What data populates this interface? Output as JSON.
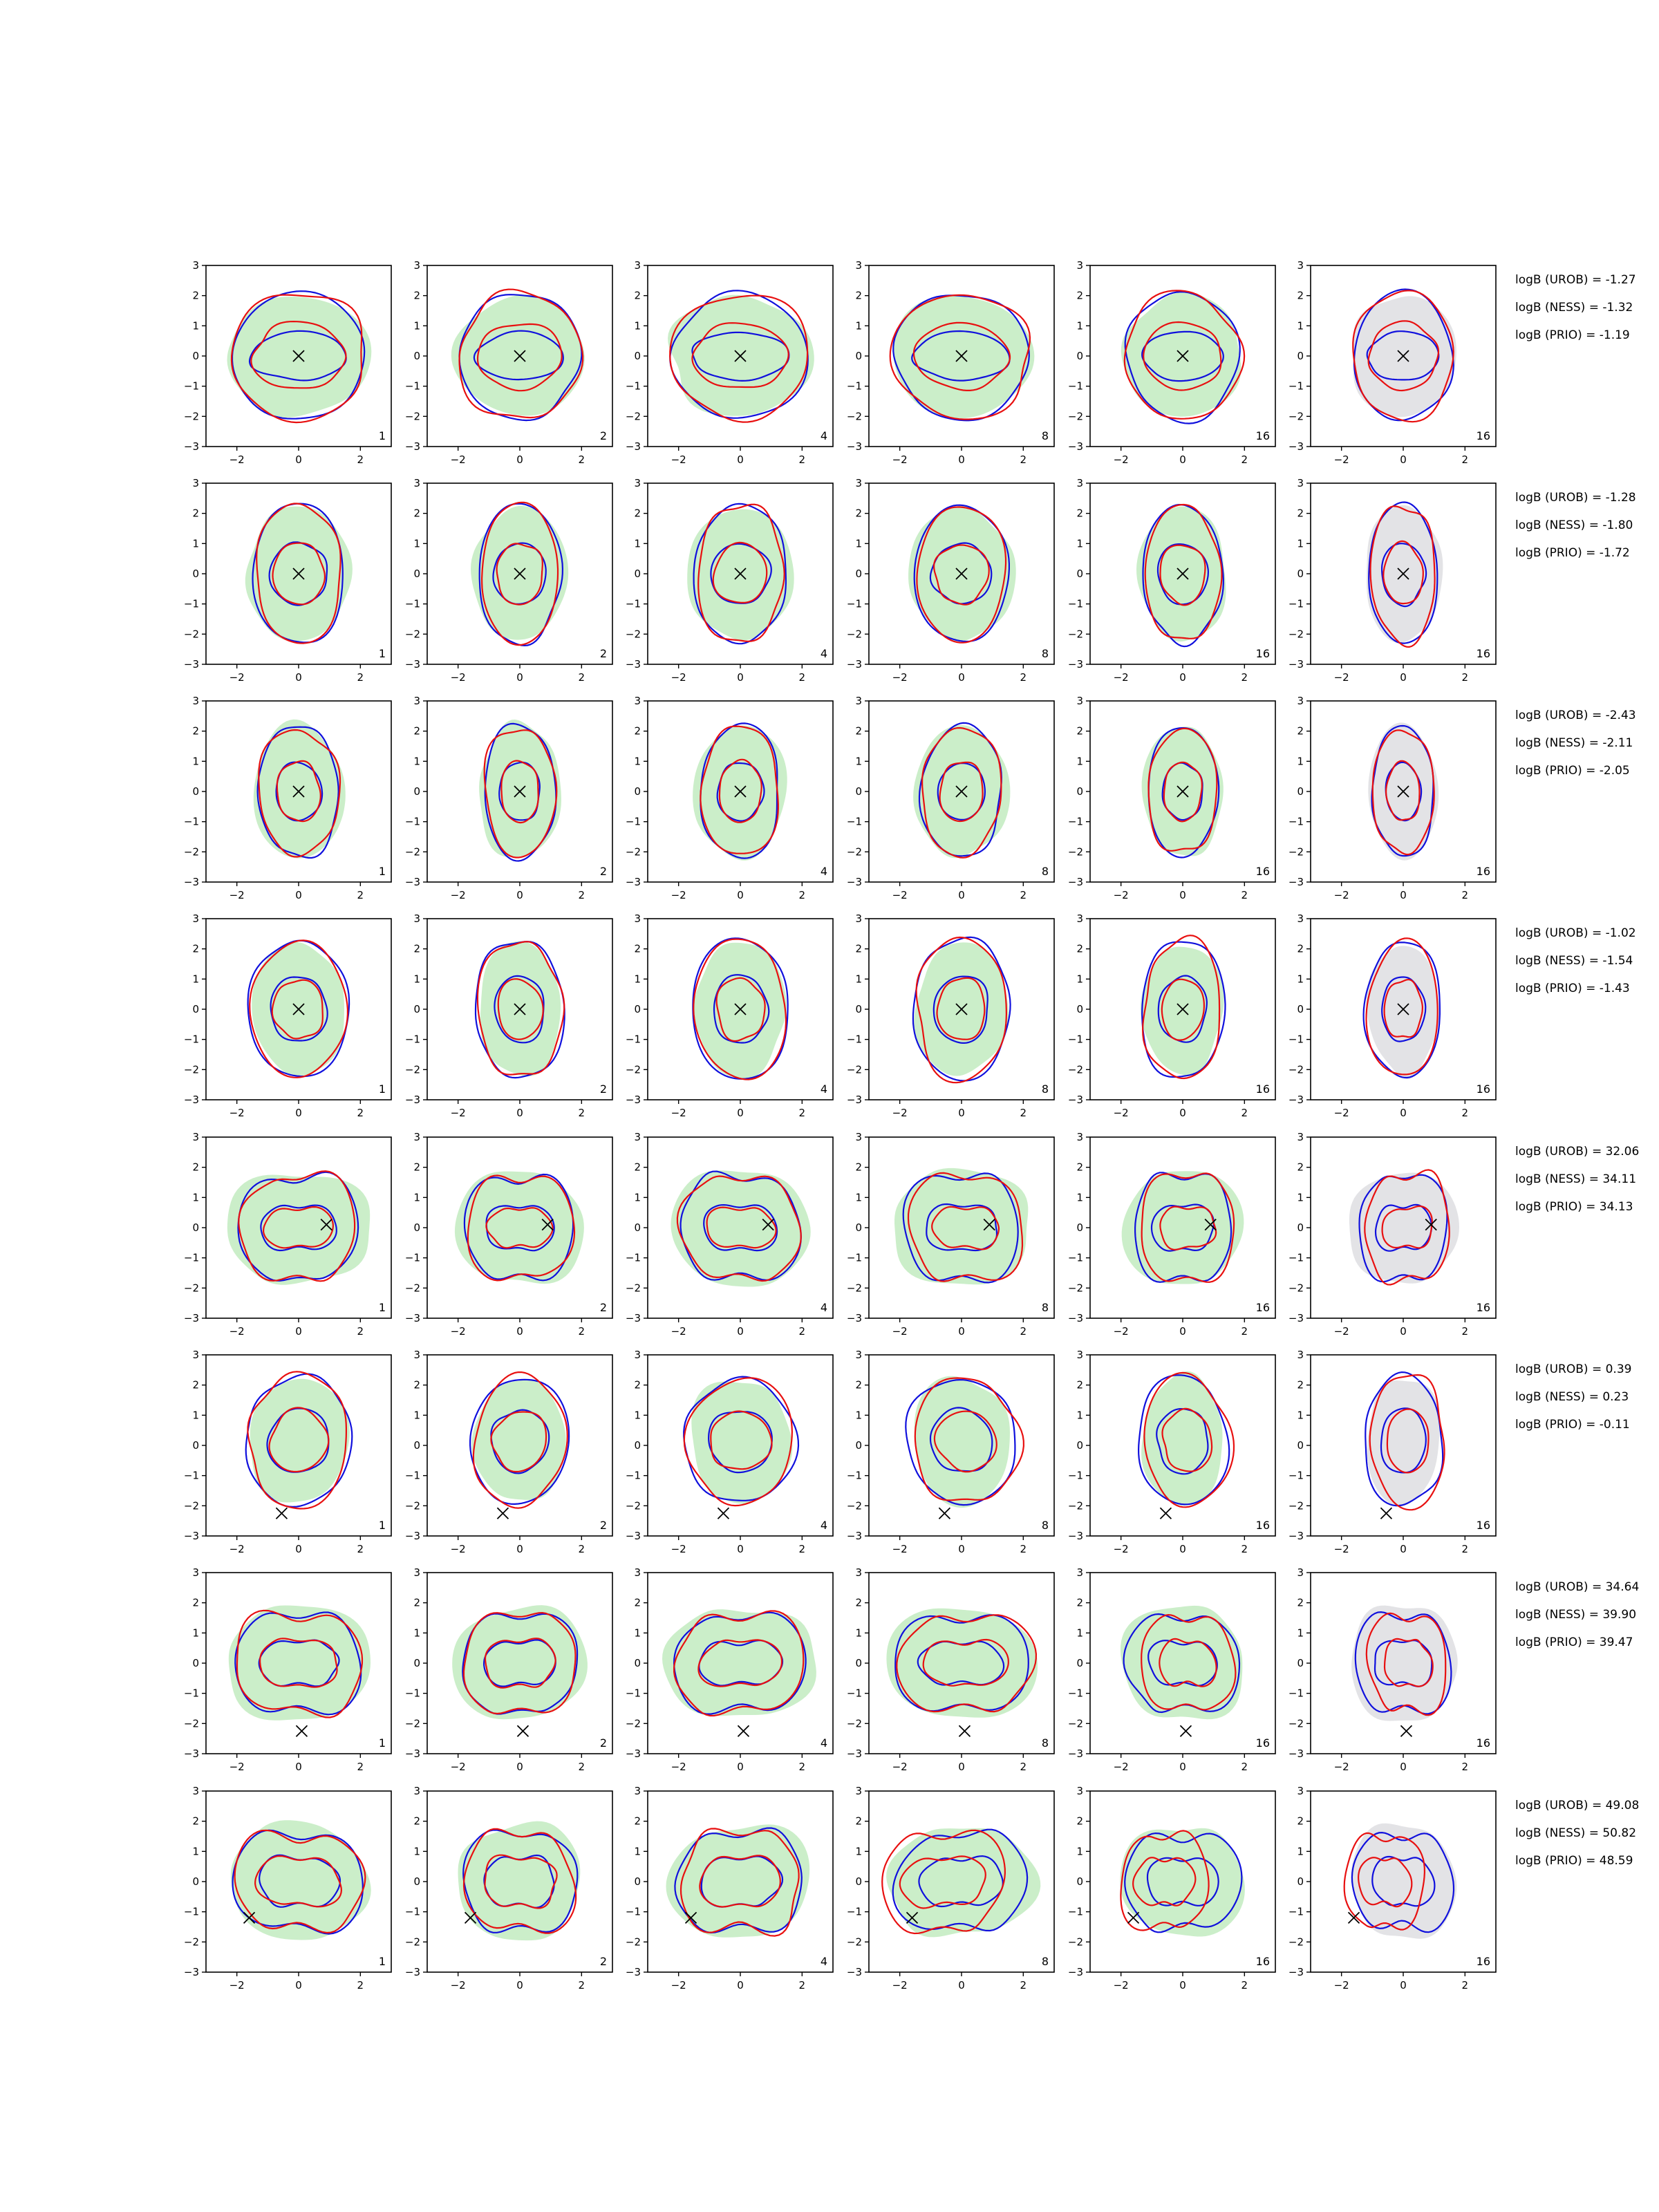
{
  "chart_data": {
    "type": "contour",
    "layout": {
      "rows": 8,
      "cols": 6
    },
    "xlim": [
      -3,
      3
    ],
    "ylim": [
      -3,
      3
    ],
    "xticks": [
      -2,
      0,
      2
    ],
    "yticks": [
      -3,
      -2,
      -1,
      0,
      1,
      2,
      3
    ],
    "grid": false,
    "colors": {
      "fill_green": "#c8edc6",
      "fill_gray": "#e1e1e5",
      "contour_blue": "#1010dd",
      "contour_red": "#e81010",
      "marker": "#000000"
    },
    "column_panel_labels": [
      "1",
      "2",
      "4",
      "8",
      "16",
      "16"
    ],
    "marker_locations": [
      {
        "row": 1,
        "x": 0,
        "y": 0
      },
      {
        "row": 2,
        "x": 0,
        "y": 0
      },
      {
        "row": 3,
        "x": 0,
        "y": 0
      },
      {
        "row": 4,
        "x": 0,
        "y": 0
      },
      {
        "row": 5,
        "x": 0.9,
        "y": 0.1
      },
      {
        "row": 6,
        "x": -0.55,
        "y": -2.25
      },
      {
        "row": 7,
        "x": 0.1,
        "y": -2.25
      },
      {
        "row": 8,
        "x": -1.6,
        "y": -1.2
      }
    ],
    "bayes_factors": [
      {
        "row": 1,
        "lines": [
          "logB (UROB) = -1.27",
          "logB (NESS) = -1.32",
          "logB (PRIO) = -1.19"
        ]
      },
      {
        "row": 2,
        "lines": [
          "logB (UROB) = -1.28",
          "logB (NESS) = -1.80",
          "logB (PRIO) = -1.72"
        ]
      },
      {
        "row": 3,
        "lines": [
          "logB (UROB) = -2.43",
          "logB (NESS) = -2.11",
          "logB (PRIO) = -2.05"
        ]
      },
      {
        "row": 4,
        "lines": [
          "logB (UROB) = -1.02",
          "logB (NESS) = -1.54",
          "logB (PRIO) = -1.43"
        ]
      },
      {
        "row": 5,
        "lines": [
          "logB (UROB) = 32.06",
          "logB (NESS) = 34.11",
          "logB (PRIO) = 34.13"
        ]
      },
      {
        "row": 6,
        "lines": [
          "logB (UROB) = 0.39",
          "logB (NESS) = 0.23",
          "logB (PRIO) = -0.11"
        ]
      },
      {
        "row": 7,
        "lines": [
          "logB (UROB) = 34.64",
          "logB (NESS) = 39.90",
          "logB (PRIO) = 39.47"
        ]
      },
      {
        "row": 8,
        "lines": [
          "logB (UROB) = 49.08",
          "logB (NESS) = 50.82",
          "logB (PRIO) = 48.59"
        ]
      }
    ]
  }
}
